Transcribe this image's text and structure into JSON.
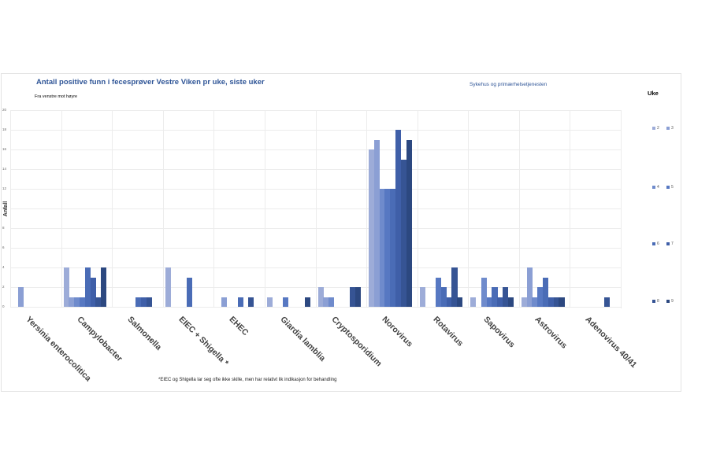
{
  "header": {
    "title": "Antall positive funn i fecesprøver Vestre Viken pr uke, siste uker",
    "subtitle": "Fra venstre mot høyre",
    "source": "Sykehus og primærhelsetjenesten"
  },
  "legend": {
    "title": "Uke",
    "items": [
      {
        "label": "2",
        "color": "#9dacd8"
      },
      {
        "label": "3",
        "color": "#8b9fd4"
      },
      {
        "label": "4",
        "color": "#6f8bcc"
      },
      {
        "label": "5",
        "color": "#5778c2"
      },
      {
        "label": "6",
        "color": "#4a6cb6"
      },
      {
        "label": "7",
        "color": "#3f5fa8"
      },
      {
        "label": "8",
        "color": "#365494"
      },
      {
        "label": "9",
        "color": "#2c4880"
      }
    ]
  },
  "footnote": "*EIEC og Shigella lar seg ofte ikke skille, men har relativt lik indikasjon for behandling",
  "chart_data": {
    "type": "bar",
    "title": "Antall positive funn i fecesprøver Vestre Viken pr uke, siste uker",
    "subtitle": "Fra venstre mot høyre",
    "xlabel": "",
    "ylabel": "Antall",
    "ylim": [
      0,
      20
    ],
    "yticks": [
      "0",
      "2",
      "4",
      "6",
      "8",
      "10",
      "12",
      "14",
      "16",
      "18",
      "20"
    ],
    "grid": true,
    "legend_position": "right",
    "legend_title": "Uke",
    "categories": [
      "Yersinia enterocolitica",
      "Campylobacter",
      "Salmonella",
      "EIEC + Shigella *",
      "EHEC",
      "Giardia lamblia",
      "Cryptosporidium",
      "Norovirus",
      "Rotavirus",
      "Sapovirus",
      "Astrovirus",
      "Adenovirus 40/41"
    ],
    "series": [
      {
        "name": "2",
        "values": [
          0,
          4,
          0,
          4,
          0,
          1,
          2,
          16,
          2,
          1,
          1,
          0
        ]
      },
      {
        "name": "3",
        "values": [
          2,
          1,
          0,
          0,
          1,
          0,
          1,
          17,
          0,
          0,
          4,
          0
        ]
      },
      {
        "name": "4",
        "values": [
          0,
          1,
          0,
          0,
          0,
          0,
          1,
          12,
          0,
          3,
          1,
          0
        ]
      },
      {
        "name": "5",
        "values": [
          0,
          1,
          0,
          0,
          0,
          1,
          0,
          12,
          3,
          1,
          2,
          0
        ]
      },
      {
        "name": "6",
        "values": [
          0,
          4,
          1,
          3,
          1,
          0,
          0,
          12,
          2,
          2,
          3,
          0
        ]
      },
      {
        "name": "7",
        "values": [
          0,
          3,
          1,
          0,
          0,
          0,
          0,
          18,
          1,
          1,
          1,
          0
        ]
      },
      {
        "name": "8",
        "values": [
          0,
          1,
          1,
          0,
          1,
          0,
          2,
          15,
          4,
          2,
          1,
          1
        ]
      },
      {
        "name": "9",
        "values": [
          0,
          4,
          0,
          0,
          0,
          1,
          2,
          17,
          1,
          1,
          1,
          0
        ]
      }
    ]
  }
}
